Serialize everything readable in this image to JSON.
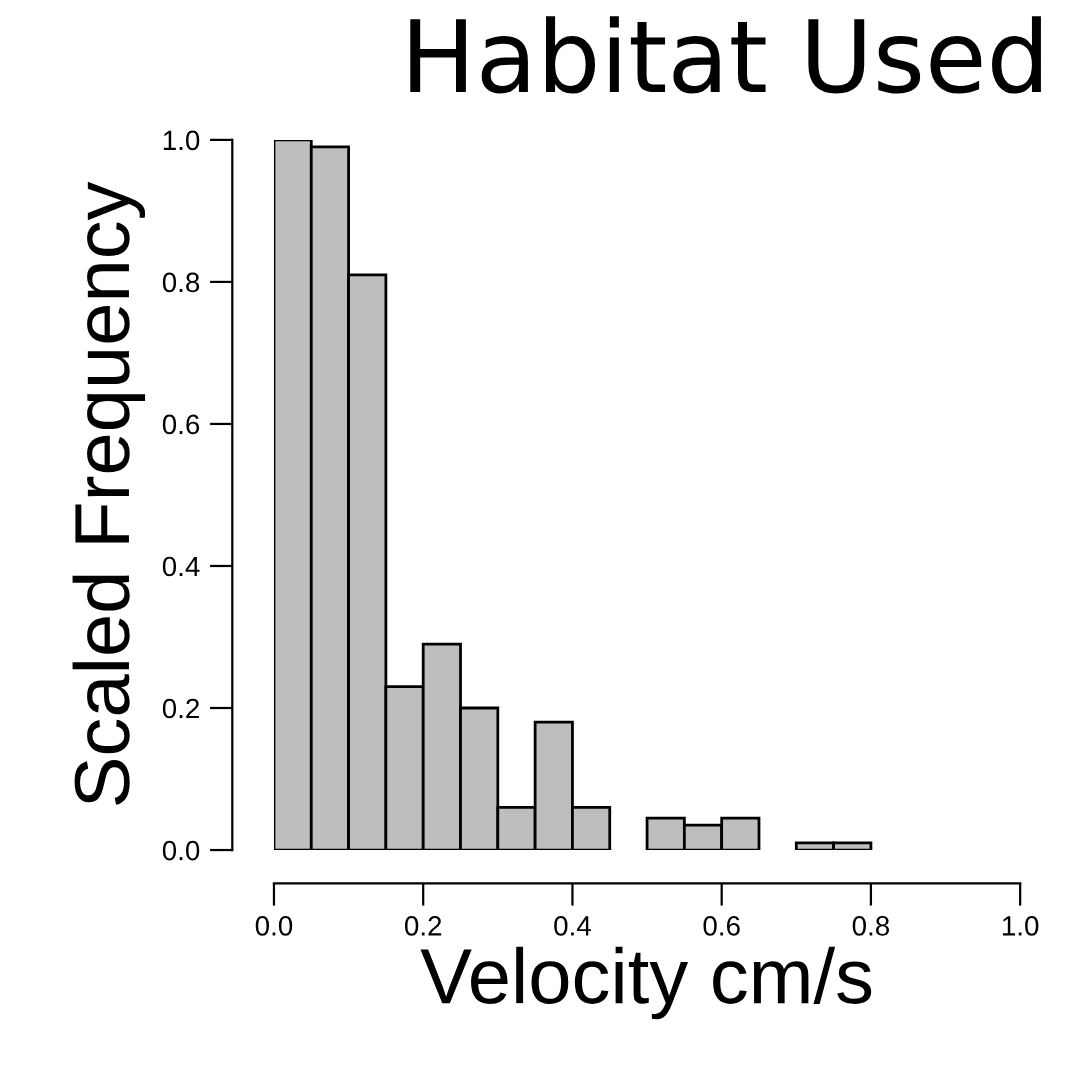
{
  "chart_data": {
    "type": "histogram",
    "title": "Habitat Used",
    "xlabel": "Velocity cm/s",
    "ylabel": "Scaled Frequency",
    "bins": [
      0,
      0.05,
      0.1,
      0.15,
      0.2,
      0.25,
      0.3,
      0.35,
      0.4,
      0.45,
      0.5,
      0.55,
      0.6,
      0.65,
      0.7,
      0.75,
      0.8
    ],
    "values": [
      1.0,
      0.99,
      0.81,
      0.23,
      0.29,
      0.2,
      0.06,
      0.18,
      0.06,
      0,
      0.045,
      0.035,
      0.045,
      0,
      0.01,
      0.01
    ],
    "color": "#bebebe",
    "xlim": [
      0,
      1
    ],
    "ylim": [
      0,
      1
    ],
    "xticks": [
      {
        "value": 0,
        "label": "0.0"
      },
      0.2,
      0.4,
      0.6,
      0.8,
      {
        "value": 1,
        "label": "1.0"
      }
    ],
    "yticks": [
      {
        "value": 0,
        "label": "0.0"
      },
      0.2,
      0.4,
      0.6,
      0.8,
      {
        "value": 1,
        "label": "1.0"
      }
    ],
    "grid": false
  }
}
